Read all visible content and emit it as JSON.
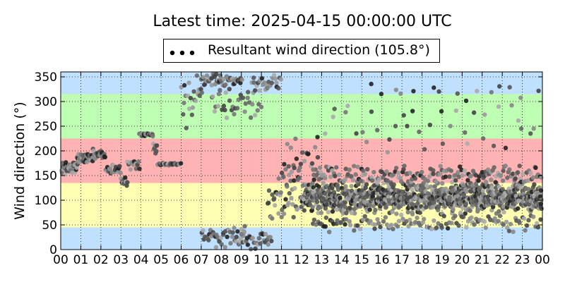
{
  "chart_data": {
    "type": "scatter",
    "title": "Latest time: 2025-04-15 00:00:00 UTC",
    "ylabel": "Wind direction (°)",
    "xlabel": "",
    "xlim": [
      0,
      24
    ],
    "ylim": [
      0,
      360
    ],
    "x_ticks": [
      "00",
      "01",
      "02",
      "03",
      "04",
      "05",
      "06",
      "07",
      "08",
      "09",
      "10",
      "11",
      "12",
      "13",
      "14",
      "15",
      "16",
      "17",
      "18",
      "19",
      "20",
      "21",
      "22",
      "23",
      "00"
    ],
    "y_ticks": [
      0,
      50,
      100,
      150,
      200,
      250,
      300,
      350
    ],
    "grid": true,
    "legend": {
      "label": "Resultant wind direction (105.8°)",
      "placement": "top-center"
    },
    "bands": [
      {
        "from": 0,
        "to": 45,
        "color": "#bfe0ff"
      },
      {
        "from": 45,
        "to": 135,
        "color": "#ffffb3"
      },
      {
        "from": 135,
        "to": 225,
        "color": "#ffb3b3"
      },
      {
        "from": 225,
        "to": 315,
        "color": "#bfffb3"
      },
      {
        "from": 315,
        "to": 360,
        "color": "#bfe0ff"
      }
    ],
    "segments": [
      {
        "x0": 0.0,
        "x1": 0.8,
        "center": 165,
        "spread": 15,
        "step": 0.02
      },
      {
        "x0": 0.8,
        "x1": 1.6,
        "center": 185,
        "spread": 12,
        "step": 0.02
      },
      {
        "x0": 1.6,
        "x1": 2.2,
        "center": 195,
        "spread": 12,
        "step": 0.03
      },
      {
        "x0": 2.2,
        "x1": 3.0,
        "center": 162,
        "spread": 12,
        "step": 0.04
      },
      {
        "x0": 3.0,
        "x1": 3.3,
        "center": 140,
        "spread": 15,
        "step": 0.03
      },
      {
        "x0": 3.3,
        "x1": 3.9,
        "center": 175,
        "spread": 15,
        "step": 0.05
      },
      {
        "x0": 3.9,
        "x1": 4.6,
        "center": 233,
        "spread": 4,
        "step": 0.04
      },
      {
        "x0": 4.6,
        "x1": 4.8,
        "center": 205,
        "spread": 15,
        "step": 0.03
      },
      {
        "x0": 4.8,
        "x1": 6.0,
        "center": 173,
        "spread": 3,
        "step": 0.04
      },
      {
        "x0": 6.0,
        "x1": 7.0,
        "center": 300,
        "spread": 60,
        "step": 0.05
      },
      {
        "x0": 7.0,
        "x1": 9.0,
        "center": 345,
        "spread": 15,
        "step": 0.04
      },
      {
        "x0": 7.0,
        "x1": 9.2,
        "center": 25,
        "spread": 25,
        "step": 0.05
      },
      {
        "x0": 7.5,
        "x1": 10.0,
        "center": 300,
        "spread": 40,
        "step": 0.07
      },
      {
        "x0": 9.0,
        "x1": 10.5,
        "center": 20,
        "spread": 25,
        "step": 0.05
      },
      {
        "x0": 9.5,
        "x1": 11.0,
        "center": 340,
        "spread": 20,
        "step": 0.06
      },
      {
        "x0": 10.3,
        "x1": 12.0,
        "center": 100,
        "spread": 60,
        "step": 0.04
      },
      {
        "x0": 11.0,
        "x1": 13.0,
        "center": 180,
        "spread": 80,
        "step": 0.06
      },
      {
        "x0": 12.0,
        "x1": 24.0,
        "center": 105,
        "spread": 35,
        "step": 0.012
      },
      {
        "x0": 12.5,
        "x1": 24.0,
        "center": 150,
        "spread": 25,
        "step": 0.06
      },
      {
        "x0": 12.5,
        "x1": 24.0,
        "center": 55,
        "spread": 20,
        "step": 0.09
      },
      {
        "x0": 13.0,
        "x1": 24.0,
        "center": 250,
        "spread": 60,
        "step": 0.3
      },
      {
        "x0": 15.0,
        "x1": 24.0,
        "center": 320,
        "spread": 20,
        "step": 0.6
      }
    ]
  }
}
